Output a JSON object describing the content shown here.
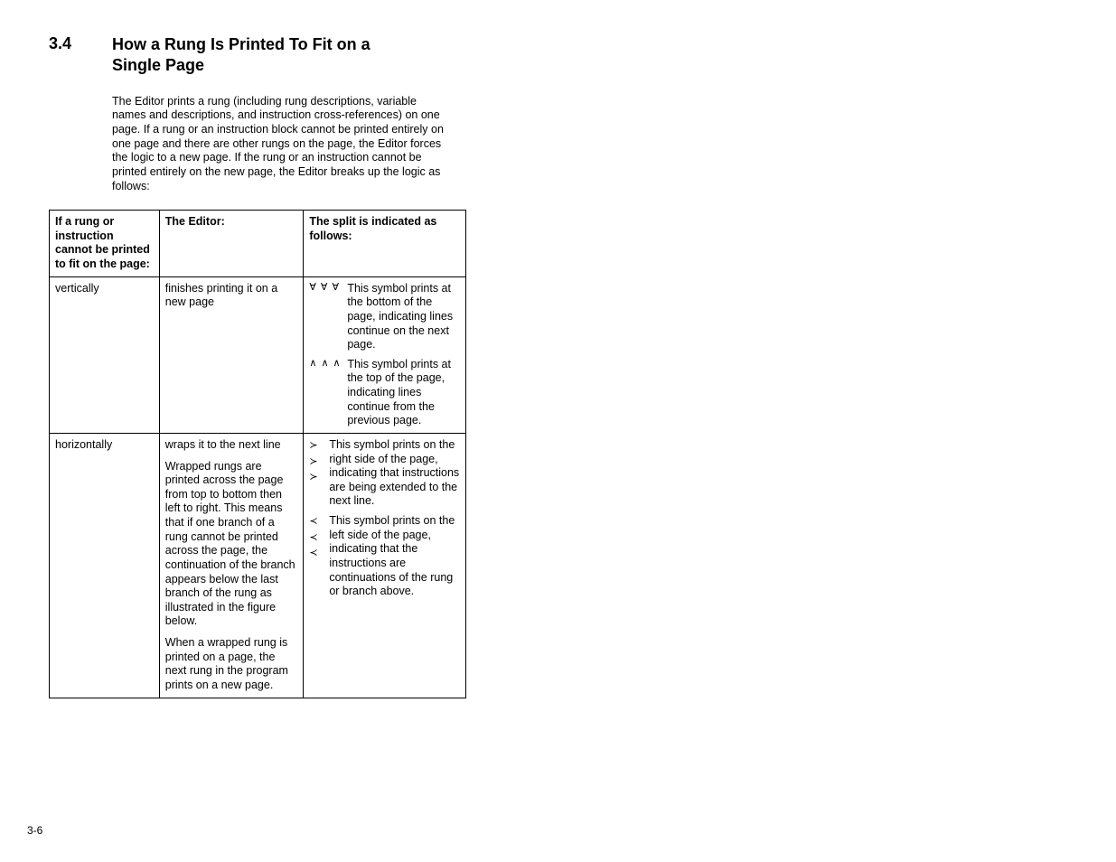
{
  "section": {
    "number": "3.4",
    "title": "How a Rung Is Printed To Fit on a Single Page"
  },
  "intro": "The Editor prints a rung (including rung descriptions, variable names and descriptions, and instruction cross-references) on one page. If a rung or an instruction block cannot be printed entirely on one page and there are other rungs on the page, the Editor forces the logic to a new page. If the rung or an instruction cannot be printed entirely on the new page, the Editor breaks up the logic as follows:",
  "table": {
    "headers": {
      "h1": "If a rung or instruction cannot be printed to fit on the page:",
      "h2": "The Editor:",
      "h3": "The split is indicated as follows:"
    },
    "row1": {
      "c1": "vertically",
      "c2": "finishes printing it on a new page",
      "c3": {
        "item1": {
          "symbol": "∀ ∀ ∀",
          "desc": "This symbol prints at the bottom of the page, indicating lines continue on the next page."
        },
        "item2": {
          "symbol": "∧ ∧ ∧",
          "desc": "This symbol prints at the top of the page, indicating lines continue from the previous page."
        }
      }
    },
    "row2": {
      "c1": "horizontally",
      "c2": {
        "p1": "wraps it to the next line",
        "p2": "Wrapped rungs are printed across the page from top to bottom then left to right. This means that if one branch of a rung cannot be printed across the page, the continuation of the branch appears below the last branch of the rung as illustrated in the figure below.",
        "p3": "When a wrapped rung is printed on a page, the next rung in the program prints on a new page."
      },
      "c3": {
        "item1": {
          "s1": "≻",
          "s2": "≻",
          "s3": "≻",
          "desc": "This symbol prints on the right side of the page, indicating that instructions are being extended to the next line."
        },
        "item2": {
          "s1": "≺",
          "s2": "≺",
          "s3": "≺",
          "desc": "This symbol prints on the left side of the page, indicating that the instructions are continuations of the rung or branch above."
        }
      }
    }
  },
  "footer": "3-6"
}
